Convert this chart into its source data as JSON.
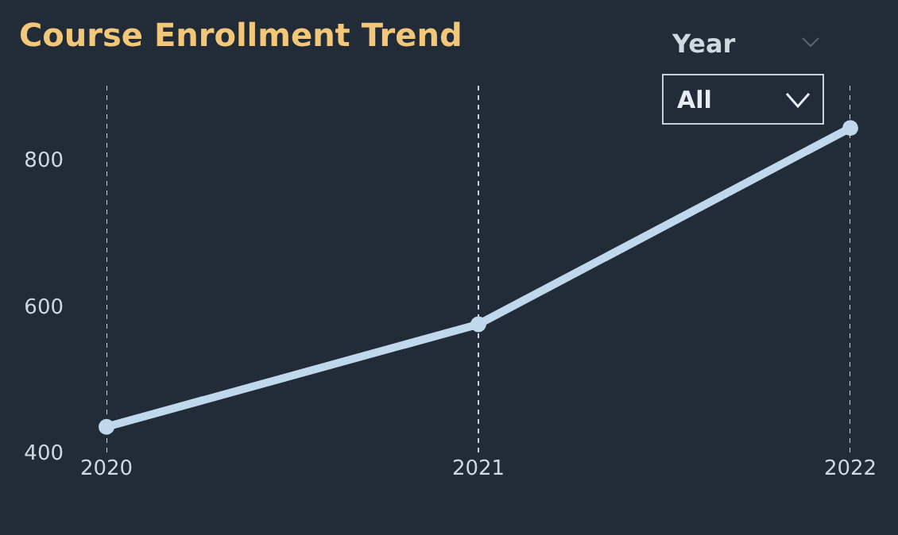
{
  "chart_data": {
    "type": "line",
    "title": "Course Enrollment Trend",
    "x": [
      2020,
      2021,
      2022
    ],
    "series": [
      {
        "color": "#c0d8ec",
        "values": [
          435,
          575,
          843
        ]
      }
    ],
    "xlim": [
      2020,
      2022
    ],
    "xticks": [
      2020,
      2021,
      2022
    ],
    "ylim": [
      400,
      905
    ],
    "yticks": [
      400,
      600,
      800
    ],
    "grid": "x",
    "marker": "circle",
    "line_style": "solid",
    "annotations": [
      "Year",
      "All"
    ]
  }
}
